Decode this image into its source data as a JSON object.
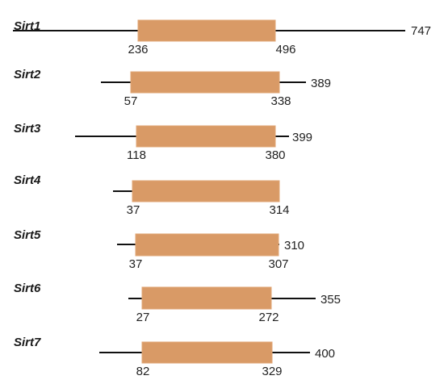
{
  "colors": {
    "domain_fill": "#d99a66",
    "domain_edge": "#e0a574",
    "line": "#111111",
    "text": "#222222"
  },
  "proteins": [
    {
      "name": "Sirt1",
      "length": 747,
      "domain_start": 236,
      "domain_end": 496,
      "labels": {
        "start": "236",
        "end": "496",
        "length": "747"
      }
    },
    {
      "name": "Sirt2",
      "length": 389,
      "domain_start": 57,
      "domain_end": 338,
      "labels": {
        "start": "57",
        "end": "338",
        "length": "389"
      }
    },
    {
      "name": "Sirt3",
      "length": 399,
      "domain_start": 118,
      "domain_end": 380,
      "labels": {
        "start": "118",
        "end": "380",
        "length": "399"
      }
    },
    {
      "name": "Sirt4",
      "length": 314,
      "domain_start": 37,
      "domain_end": 314,
      "labels": {
        "start": "37",
        "end": "314"
      }
    },
    {
      "name": "Sirt5",
      "length": 310,
      "domain_start": 37,
      "domain_end": 307,
      "labels": {
        "start": "37",
        "end": "307",
        "length": "310"
      }
    },
    {
      "name": "Sirt6",
      "length": 355,
      "domain_start": 27,
      "domain_end": 272,
      "labels": {
        "start": "27",
        "end": "272",
        "length": "355"
      }
    },
    {
      "name": "Sirt7",
      "length": 400,
      "domain_start": 82,
      "domain_end": 329,
      "labels": {
        "start": "82",
        "end": "329",
        "length": "400"
      }
    }
  ]
}
